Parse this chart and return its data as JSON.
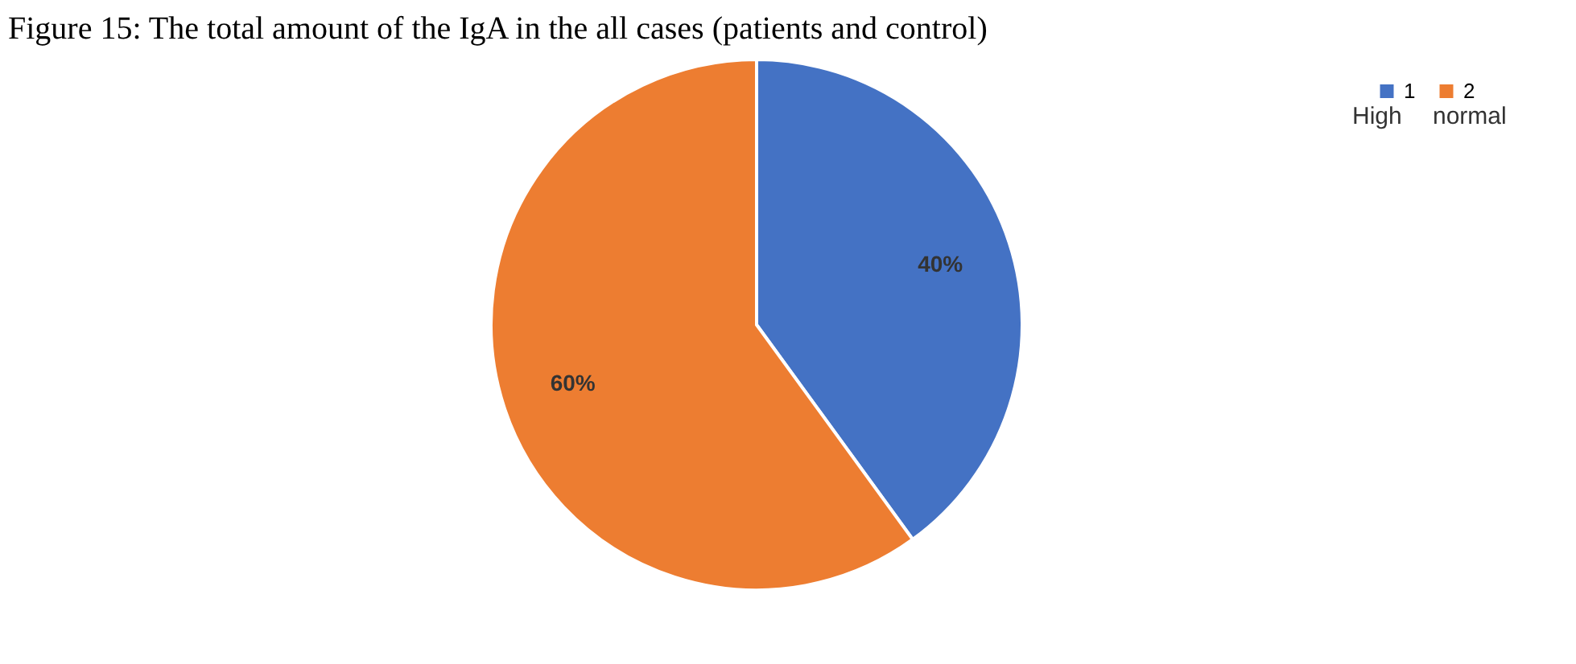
{
  "chart_data": {
    "type": "pie",
    "title": "Figure 15: The total amount of the IgA in the all cases (patients and control)",
    "categories": [
      "1",
      "2"
    ],
    "values": [
      40,
      60
    ],
    "colors": [
      "#4472c4",
      "#ed7d31"
    ],
    "value_labels": [
      "40%",
      "60%"
    ],
    "legend": "top right",
    "annotations": [
      "High",
      "normal"
    ]
  }
}
